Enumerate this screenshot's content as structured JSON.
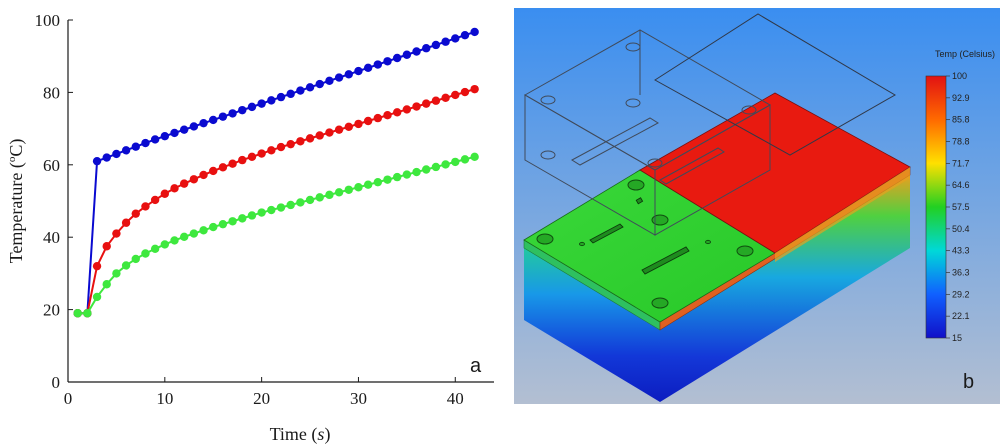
{
  "panel_a_label": "a",
  "panel_b_label": "b",
  "chart_data": {
    "type": "line",
    "xlabel_main": "Time (",
    "xlabel_unit": "s",
    "xlabel_close": ")",
    "ylabel_main": "Temperature (",
    "ylabel_sup": "o",
    "ylabel_unit": "C)",
    "xlim": [
      0,
      44
    ],
    "ylim": [
      0,
      100
    ],
    "x_ticks": [
      0,
      10,
      20,
      30,
      40
    ],
    "y_ticks": [
      0,
      20,
      40,
      60,
      80,
      100
    ],
    "series": [
      {
        "color": "#0a0ad0",
        "x": [
          1,
          2,
          3,
          4,
          5,
          6,
          7,
          8,
          9,
          10,
          11,
          12,
          13,
          14,
          15,
          16,
          17,
          18,
          19,
          20,
          21,
          22,
          23,
          24,
          25,
          26,
          27,
          28,
          29,
          30,
          31,
          32,
          33,
          34,
          35,
          36,
          37,
          38,
          39,
          40,
          41,
          42
        ],
        "values": [
          19,
          19,
          61,
          62,
          63,
          64,
          65,
          66,
          67,
          67.9,
          68.8,
          69.7,
          70.6,
          71.5,
          72.4,
          73.3,
          74.2,
          75.1,
          76,
          76.9,
          77.8,
          78.7,
          79.6,
          80.5,
          81.4,
          82.3,
          83.2,
          84.1,
          85,
          85.9,
          86.8,
          87.7,
          88.6,
          89.5,
          90.4,
          91.3,
          92.2,
          93.1,
          94,
          94.9,
          95.8,
          96.7
        ]
      },
      {
        "color": "#e81010",
        "x": [
          1,
          2,
          3,
          4,
          5,
          6,
          7,
          8,
          9,
          10,
          11,
          12,
          13,
          14,
          15,
          16,
          17,
          18,
          19,
          20,
          21,
          22,
          23,
          24,
          25,
          26,
          27,
          28,
          29,
          30,
          31,
          32,
          33,
          34,
          35,
          36,
          37,
          38,
          39,
          40,
          41,
          42
        ],
        "values": [
          19,
          19,
          32,
          37.5,
          41,
          44,
          46.5,
          48.5,
          50.3,
          52,
          53.5,
          54.8,
          56,
          57.2,
          58.3,
          59.3,
          60.3,
          61.3,
          62.2,
          63.1,
          64,
          64.9,
          65.7,
          66.5,
          67.3,
          68.1,
          68.9,
          69.7,
          70.5,
          71.3,
          72.1,
          72.9,
          73.7,
          74.5,
          75.3,
          76.1,
          76.9,
          77.7,
          78.5,
          79.3,
          80.1,
          80.9
        ]
      },
      {
        "color": "#3ee83e",
        "x": [
          1,
          2,
          3,
          4,
          5,
          6,
          7,
          8,
          9,
          10,
          11,
          12,
          13,
          14,
          15,
          16,
          17,
          18,
          19,
          20,
          21,
          22,
          23,
          24,
          25,
          26,
          27,
          28,
          29,
          30,
          31,
          32,
          33,
          34,
          35,
          36,
          37,
          38,
          39,
          40,
          41,
          42
        ],
        "values": [
          19,
          19,
          23.5,
          27,
          30,
          32.2,
          34,
          35.5,
          36.8,
          38,
          39.1,
          40.1,
          41,
          41.9,
          42.8,
          43.6,
          44.4,
          45.2,
          46,
          46.8,
          47.5,
          48.2,
          48.9,
          49.6,
          50.3,
          51,
          51.7,
          52.4,
          53.1,
          53.8,
          54.5,
          55.2,
          55.9,
          56.6,
          57.3,
          58,
          58.7,
          59.4,
          60.1,
          60.8,
          61.5,
          62.2
        ]
      }
    ]
  },
  "colorbar": {
    "title": "Temp (Celsius)",
    "labels": [
      "100",
      "92.9",
      "85.8",
      "78.8",
      "71.7",
      "64.6",
      "57.5",
      "50.4",
      "43.3",
      "36.3",
      "29.2",
      "22.1",
      "15"
    ],
    "colors": [
      "#e21212",
      "#ff6a00",
      "#ffe000",
      "#22d022",
      "#00d8d8",
      "#1060ff",
      "#1010c8"
    ]
  },
  "render_colors": {
    "background_top": "#3a8ef0",
    "background_bottom": "#b3bfd2",
    "hot_region": "#e81a10",
    "warm_region": "#2fd62f"
  }
}
